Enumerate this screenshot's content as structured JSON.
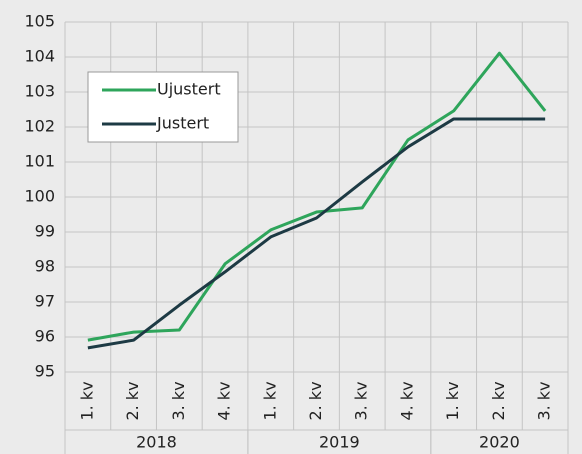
{
  "chart_data": {
    "type": "line",
    "groups": [
      {
        "name": "2018",
        "categories": [
          "1. kv",
          "2. kv",
          "3. kv",
          "4. kv"
        ]
      },
      {
        "name": "2019",
        "categories": [
          "1. kv",
          "2. kv",
          "3. kv",
          "4. kv"
        ]
      },
      {
        "name": "2020",
        "categories": [
          "1. kv",
          "2. kv",
          "3. kv"
        ]
      }
    ],
    "series": [
      {
        "name": "Ujustert",
        "color": "#2ea55b",
        "values": [
          95.91,
          96.14,
          96.2,
          98.09,
          99.06,
          99.57,
          99.69,
          101.63,
          102.46,
          104.11,
          102.46
        ]
      },
      {
        "name": "Justert",
        "color": "#1d3a44",
        "values": [
          95.69,
          95.91,
          96.91,
          97.86,
          98.86,
          99.4,
          100.43,
          101.43,
          102.23,
          102.23,
          102.23
        ]
      }
    ],
    "ylim": [
      95,
      105
    ],
    "yticks": [
      95,
      96,
      97,
      98,
      99,
      100,
      101,
      102,
      103,
      104,
      105
    ],
    "grid": true,
    "legend": "upper left"
  }
}
